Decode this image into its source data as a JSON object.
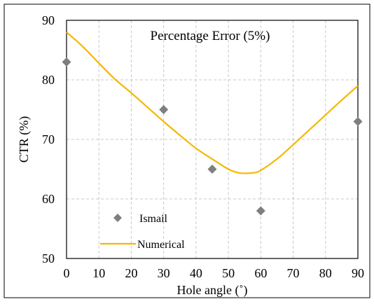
{
  "chart_data": {
    "type": "scatter",
    "title": "Percentage Error (5%)",
    "xlabel": "Hole angle (˚)",
    "ylabel": "CTR (%)",
    "xlim": [
      0,
      90
    ],
    "ylim": [
      50,
      90
    ],
    "xticks": [
      0,
      10,
      20,
      30,
      40,
      50,
      60,
      70,
      80,
      90
    ],
    "yticks": [
      50,
      60,
      70,
      80,
      90
    ],
    "grid": true,
    "legend_position": "bottom-left",
    "series": [
      {
        "name": "Ismail",
        "kind": "scatter",
        "marker": "diamond",
        "color": "#7f7f7f",
        "x": [
          0,
          30,
          45,
          60,
          90
        ],
        "y": [
          83,
          75,
          65,
          58,
          73
        ]
      },
      {
        "name": "Numerical",
        "kind": "line",
        "color": "#f5b800",
        "x": [
          0,
          5,
          10,
          15,
          20,
          25,
          30,
          35,
          40,
          45,
          50,
          53,
          55,
          58,
          60,
          65,
          70,
          75,
          80,
          85,
          90
        ],
        "y": [
          88,
          85.6,
          82.8,
          80.1,
          77.8,
          75.4,
          73,
          70.7,
          68.5,
          66.7,
          65,
          64.4,
          64.3,
          64.4,
          64.8,
          66.7,
          69.1,
          71.6,
          74.1,
          76.6,
          79
        ]
      }
    ]
  }
}
